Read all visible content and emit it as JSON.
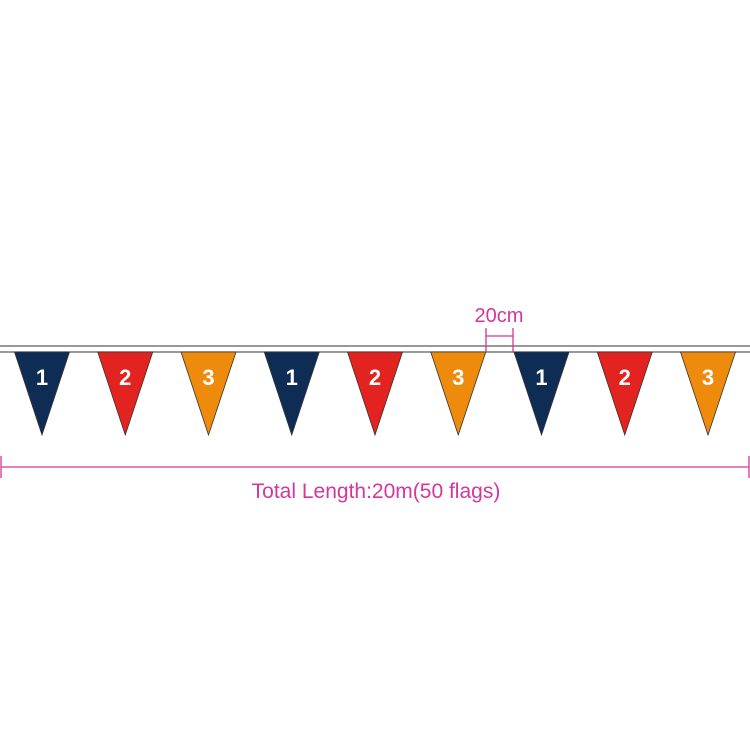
{
  "spacing_label": "20cm",
  "total_label": "Total Length:20m(50 flags)",
  "dimension_color": "#d4379b",
  "flags": [
    {
      "number": "1",
      "color": "#0f2d54"
    },
    {
      "number": "2",
      "color": "#e3231f"
    },
    {
      "number": "3",
      "color": "#ee8b0c"
    },
    {
      "number": "1",
      "color": "#0f2d54"
    },
    {
      "number": "2",
      "color": "#e3231f"
    },
    {
      "number": "3",
      "color": "#ee8b0c"
    },
    {
      "number": "1",
      "color": "#0f2d54"
    },
    {
      "number": "2",
      "color": "#e3231f"
    },
    {
      "number": "3",
      "color": "#ee8b0c"
    }
  ]
}
